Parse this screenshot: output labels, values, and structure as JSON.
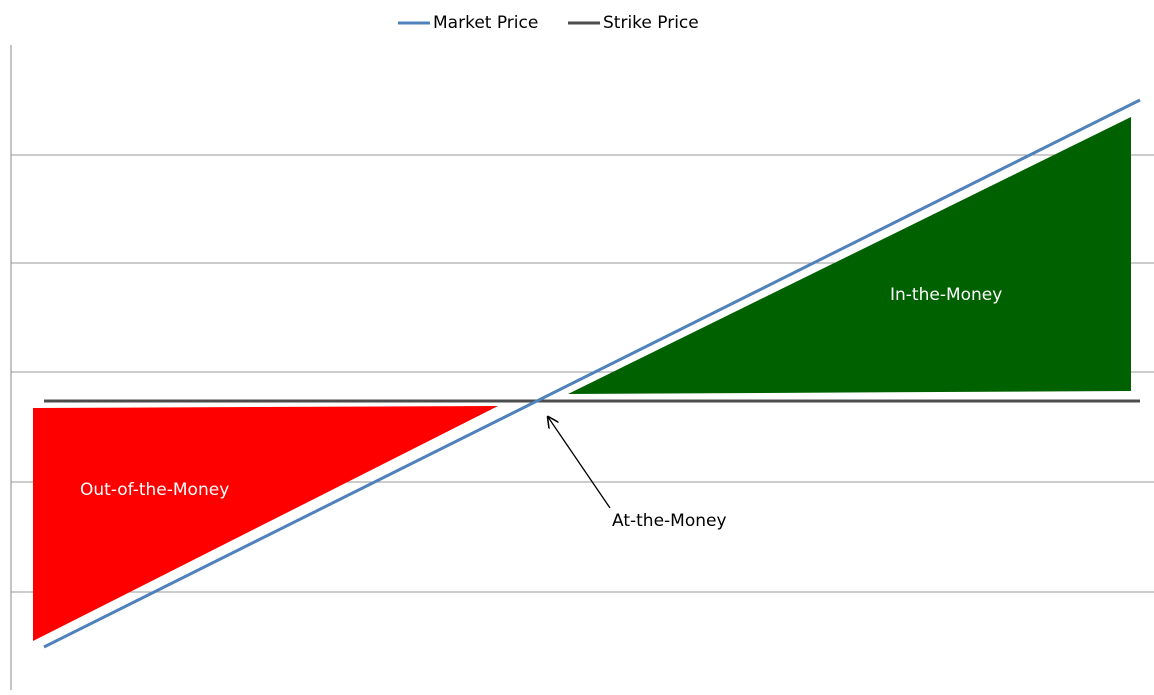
{
  "legend": {
    "items": [
      {
        "name": "Market Price",
        "color": "#4f81bd"
      },
      {
        "name": "Strike Price",
        "color": "#4d4d4d"
      }
    ]
  },
  "labels": {
    "out_of_money": "Out-of-the-Money",
    "in_money": "In-the-Money",
    "at_money": "At-the-Money"
  }
}
